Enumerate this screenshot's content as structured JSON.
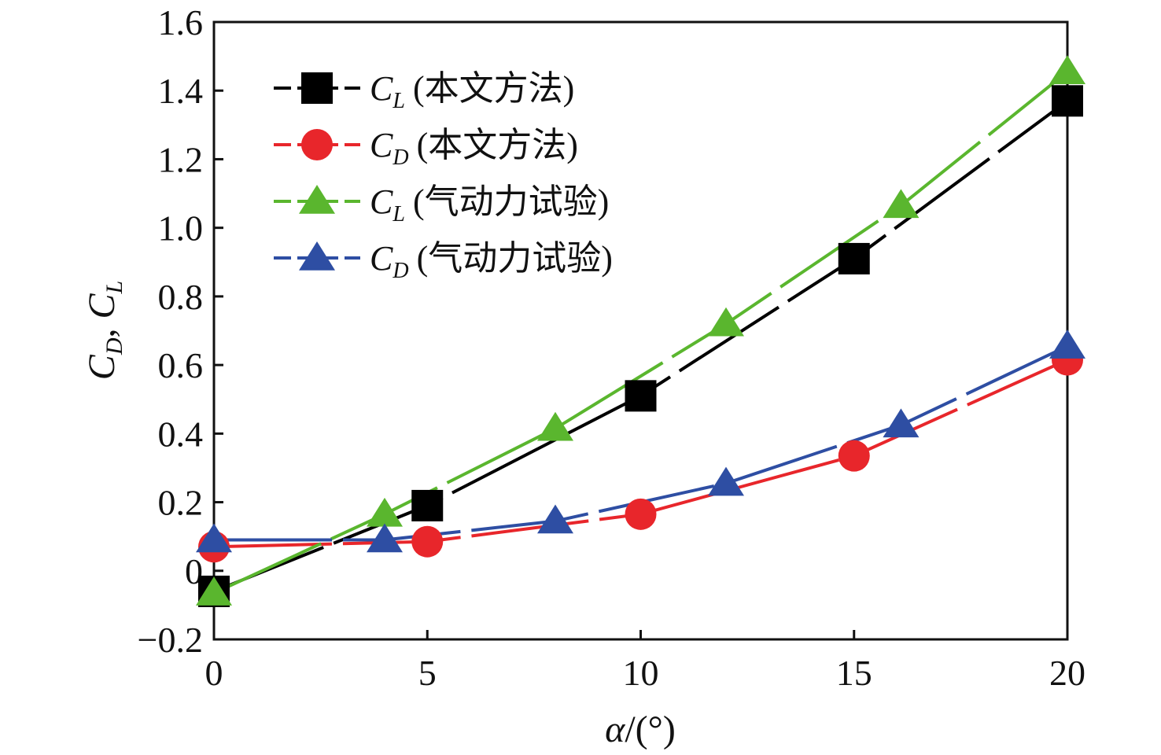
{
  "chart_data": {
    "type": "line",
    "xlabel": {
      "symbol": "α",
      "unit": "/(°)"
    },
    "ylabel": {
      "a": "C",
      "a_sub": "D",
      "sep": ", ",
      "b": "C",
      "b_sub": "L"
    },
    "xlim": [
      0,
      20
    ],
    "ylim": [
      -0.2,
      1.6
    ],
    "xticks": [
      "0",
      "5",
      "10",
      "15",
      "20"
    ],
    "xtick_values": [
      0,
      5,
      10,
      15,
      20
    ],
    "yticks": [
      "−0.2",
      "0",
      "0.2",
      "0.4",
      "0.6",
      "0.8",
      "1.0",
      "1.2",
      "1.4",
      "1.6"
    ],
    "ytick_values": [
      -0.2,
      0,
      0.2,
      0.4,
      0.6,
      0.8,
      1.0,
      1.2,
      1.4,
      1.6
    ],
    "grid": false,
    "legend_position": "top-left",
    "series": [
      {
        "name": "C_L (本文方法)",
        "symbol": "C",
        "sub": "L",
        "label": "(本文方法)",
        "marker": "square",
        "color": "#000000",
        "x": [
          0,
          5,
          10,
          15,
          20
        ],
        "y": [
          -0.06,
          0.19,
          0.51,
          0.91,
          1.37
        ]
      },
      {
        "name": "C_D (本文方法)",
        "symbol": "C",
        "sub": "D",
        "label": "(本文方法)",
        "marker": "circle",
        "color": "#e8262b",
        "x": [
          0,
          5,
          10,
          15,
          20
        ],
        "y": [
          0.07,
          0.085,
          0.165,
          0.335,
          0.615
        ]
      },
      {
        "name": "C_L (气动力试验)",
        "symbol": "C",
        "sub": "L",
        "label": "(气动力试验)",
        "marker": "triangle",
        "color": "#5ab62e",
        "x": [
          0,
          4,
          8,
          12,
          16.1,
          20
        ],
        "y": [
          -0.065,
          0.165,
          0.415,
          0.72,
          1.065,
          1.455
        ]
      },
      {
        "name": "C_D (气动力试验)",
        "symbol": "C",
        "sub": "D",
        "label": "(气动力试验)",
        "marker": "triangle",
        "color": "#2e4ea3",
        "x": [
          0,
          4,
          8,
          12,
          16.1,
          20
        ],
        "y": [
          0.09,
          0.09,
          0.145,
          0.255,
          0.425,
          0.655
        ]
      }
    ]
  }
}
